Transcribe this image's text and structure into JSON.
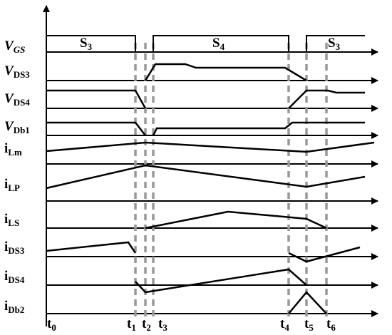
{
  "signals": [
    {
      "symbol": "V",
      "sub": "GS"
    },
    {
      "symbol": "V",
      "sub": "DS3"
    },
    {
      "symbol": "V",
      "sub": "DS4"
    },
    {
      "symbol": "V",
      "sub": "Db1"
    },
    {
      "symbol": "i",
      "sub": "Lm"
    },
    {
      "symbol": "i",
      "sub": "LP"
    },
    {
      "symbol": "i",
      "sub": "LS"
    },
    {
      "symbol": "i",
      "sub": "DS3"
    },
    {
      "symbol": "i",
      "sub": "DS4"
    },
    {
      "symbol": "i",
      "sub": "Db2"
    }
  ],
  "gates": [
    {
      "symbol": "S",
      "sub": "3"
    },
    {
      "symbol": "S",
      "sub": "4"
    },
    {
      "symbol": "S",
      "sub": "3"
    }
  ],
  "times": [
    {
      "symbol": "t",
      "sub": "0"
    },
    {
      "symbol": "t",
      "sub": "1"
    },
    {
      "symbol": "t",
      "sub": "2"
    },
    {
      "symbol": "t",
      "sub": "3"
    },
    {
      "symbol": "t",
      "sub": "4"
    },
    {
      "symbol": "t",
      "sub": "5"
    },
    {
      "symbol": "t",
      "sub": "6"
    }
  ]
}
